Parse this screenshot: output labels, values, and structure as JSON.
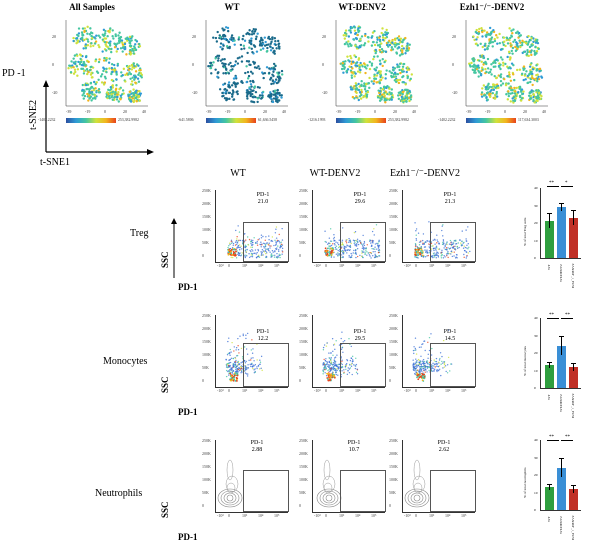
{
  "tsne": {
    "titles": [
      "All Samples",
      "WT",
      "WT-DENV2",
      "Ezh1⁻/⁻-DENV2"
    ],
    "pd1_label": "PD -1",
    "y_axis": "t-SNE2",
    "x_axis": "t-SNE1",
    "xticks": [
      "-39",
      "-19",
      "0",
      "20",
      "40"
    ],
    "yticks": [
      "20",
      "0",
      "-20"
    ],
    "colorbars": [
      {
        "min": "-1402.2232",
        "max": "253,382.9982"
      },
      {
        "min": "-641.5806",
        "max": "61,636.5458"
      },
      {
        "min": "-1216.1993",
        "max": "253,382.9982"
      },
      {
        "min": "-1402.2232",
        "max": "117,634.3003"
      }
    ],
    "colors": [
      "#2b4fa0",
      "#2f9bd6",
      "#44c6a0",
      "#cfe23d",
      "#f2b51e",
      "#e8431c",
      "#1a6a8a"
    ]
  },
  "facs": {
    "columns": [
      "WT",
      "WT-DENV2",
      "Ezh1⁻/⁻-DENV2"
    ],
    "y_axis": "SSC",
    "x_axis": "PD-1",
    "yticks": [
      "250K",
      "200K",
      "150K",
      "100K",
      "50K",
      "0"
    ],
    "xticks": [
      "-10³",
      "0",
      "10³",
      "10⁴",
      "10⁵"
    ],
    "gate_name": "PD-1",
    "rows": [
      {
        "label": "Treg",
        "values": [
          "21.0",
          "29.6",
          "21.3"
        ]
      },
      {
        "label": "Monocytes",
        "values": [
          "12.2",
          "29.5",
          "14.5"
        ]
      },
      {
        "label": "Neutrophils",
        "values": [
          "2.88",
          "10.7",
          "2.62"
        ]
      }
    ]
  },
  "bars": {
    "categories": [
      "WT",
      "WT-DENV2",
      "Ezh1⁻/⁻-DENV2"
    ],
    "colors": [
      "#2e9e3e",
      "#3a8fd6",
      "#c03026"
    ],
    "panels": [
      {
        "ylabel": "% of total Treg cells",
        "yticks": [
          "40",
          "30",
          "20",
          "10",
          "0"
        ],
        "values": [
          21,
          29,
          23
        ],
        "errors": [
          4,
          2,
          4
        ],
        "ymax": 40,
        "sig": [
          "**",
          "*"
        ]
      },
      {
        "ylabel": "% of total monocytes",
        "yticks": [
          "40",
          "30",
          "20",
          "10",
          "0"
        ],
        "values": [
          13,
          24,
          12
        ],
        "errors": [
          1.5,
          5,
          2
        ],
        "ymax": 40,
        "sig": [
          "**",
          "**"
        ]
      },
      {
        "ylabel": "% of total neutrophils",
        "yticks": [
          "40",
          "30",
          "20",
          "10",
          "0"
        ],
        "values": [
          13,
          24,
          12
        ],
        "errors": [
          1.5,
          5,
          2
        ],
        "ymax": 40,
        "sig": [
          "**",
          "**"
        ]
      }
    ]
  },
  "chart_data": [
    {
      "type": "bar",
      "categories": [
        "WT",
        "WT-DENV2",
        "Ezh1⁻/⁻-DENV2"
      ],
      "values": [
        21,
        29,
        23
      ],
      "ylabel": "% of total Treg cells",
      "ylim": [
        0,
        40
      ]
    },
    {
      "type": "bar",
      "categories": [
        "WT",
        "WT-DENV2",
        "Ezh1⁻/⁻-DENV2"
      ],
      "values": [
        13,
        24,
        12
      ],
      "ylabel": "% of total monocytes",
      "ylim": [
        0,
        40
      ]
    },
    {
      "type": "bar",
      "categories": [
        "WT",
        "WT-DENV2",
        "Ezh1⁻/⁻-DENV2"
      ],
      "values": [
        13,
        24,
        12
      ],
      "ylabel": "% of total neutrophils",
      "ylim": [
        0,
        40
      ]
    }
  ]
}
